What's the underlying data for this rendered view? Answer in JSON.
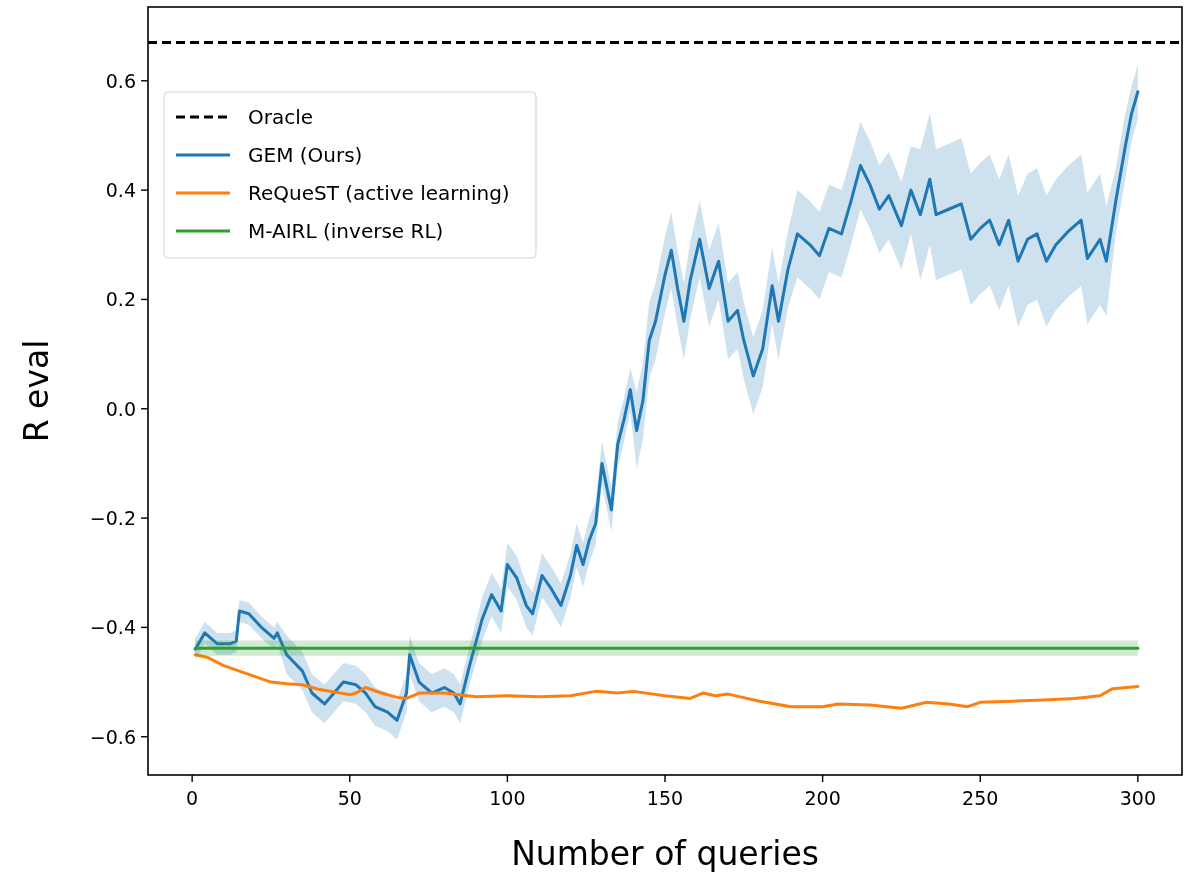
{
  "chart_data": {
    "type": "line",
    "xlabel": "Number of queries",
    "ylabel": "R eval",
    "xlim": [
      -14,
      314
    ],
    "ylim": [
      -0.67,
      0.735
    ],
    "xticks": [
      0,
      50,
      100,
      150,
      200,
      250,
      300
    ],
    "yticks": [
      {
        "value": -0.6,
        "label": "−0.6"
      },
      {
        "value": -0.4,
        "label": "−0.4"
      },
      {
        "value": -0.2,
        "label": "−0.2"
      },
      {
        "value": 0,
        "label": "0.0"
      },
      0.2,
      0.4,
      0.6
    ],
    "grid": false,
    "legend": "top left",
    "marker": "none",
    "line_style": "solid",
    "ref_lines": [
      {
        "axis": "y",
        "value": 0.67,
        "label": "Oracle",
        "color": "#000000",
        "line_style": "dashed"
      }
    ],
    "series": [
      {
        "name": "GEM (Ours)",
        "color": "#1f77b4",
        "x": [
          1,
          4,
          8,
          12,
          14,
          15,
          18,
          22,
          26,
          27,
          30,
          35,
          38,
          42,
          45,
          48,
          52,
          55,
          58,
          62,
          65,
          68,
          69,
          72,
          76,
          80,
          83,
          85,
          88,
          92,
          95,
          98,
          100,
          103,
          106,
          108,
          111,
          114,
          117,
          120,
          122,
          124,
          126,
          128,
          130,
          133,
          135,
          137,
          139,
          141,
          143,
          145,
          147,
          150,
          152,
          154,
          156,
          158,
          161,
          164,
          167,
          170,
          173,
          175,
          178,
          181,
          184,
          186,
          189,
          192,
          196,
          199,
          202,
          206,
          209,
          212,
          215,
          218,
          221,
          225,
          228,
          231,
          234,
          236,
          240,
          244,
          247,
          250,
          253,
          256,
          259,
          262,
          265,
          268,
          271,
          274,
          278,
          282,
          284,
          288,
          290,
          293,
          296,
          298,
          300
        ],
        "values": [
          -0.44,
          -0.41,
          -0.43,
          -0.43,
          -0.425,
          -0.37,
          -0.375,
          -0.4,
          -0.42,
          -0.41,
          -0.45,
          -0.48,
          -0.52,
          -0.54,
          -0.52,
          -0.5,
          -0.505,
          -0.52,
          -0.545,
          -0.555,
          -0.57,
          -0.52,
          -0.45,
          -0.5,
          -0.52,
          -0.51,
          -0.52,
          -0.54,
          -0.47,
          -0.385,
          -0.34,
          -0.37,
          -0.285,
          -0.31,
          -0.36,
          -0.375,
          -0.305,
          -0.33,
          -0.36,
          -0.305,
          -0.25,
          -0.285,
          -0.24,
          -0.21,
          -0.1,
          -0.185,
          -0.065,
          -0.02,
          0.035,
          -0.04,
          0.015,
          0.125,
          0.16,
          0.245,
          0.29,
          0.22,
          0.16,
          0.235,
          0.31,
          0.22,
          0.27,
          0.16,
          0.18,
          0.125,
          0.06,
          0.11,
          0.225,
          0.16,
          0.255,
          0.32,
          0.3,
          0.28,
          0.33,
          0.32,
          0.38,
          0.445,
          0.41,
          0.365,
          0.39,
          0.335,
          0.4,
          0.355,
          0.42,
          0.355,
          0.365,
          0.375,
          0.31,
          0.33,
          0.345,
          0.3,
          0.345,
          0.27,
          0.31,
          0.32,
          0.27,
          0.3,
          0.325,
          0.345,
          0.275,
          0.31,
          0.27,
          0.38,
          0.48,
          0.54,
          0.58
        ],
        "lower": [
          -0.46,
          -0.43,
          -0.45,
          -0.45,
          -0.445,
          -0.39,
          -0.395,
          -0.42,
          -0.44,
          -0.43,
          -0.485,
          -0.515,
          -0.555,
          -0.575,
          -0.555,
          -0.535,
          -0.54,
          -0.555,
          -0.58,
          -0.59,
          -0.605,
          -0.555,
          -0.485,
          -0.535,
          -0.555,
          -0.545,
          -0.555,
          -0.575,
          -0.505,
          -0.425,
          -0.38,
          -0.41,
          -0.325,
          -0.35,
          -0.4,
          -0.415,
          -0.345,
          -0.37,
          -0.4,
          -0.345,
          -0.29,
          -0.325,
          -0.28,
          -0.25,
          -0.14,
          -0.225,
          -0.105,
          -0.06,
          -0.005,
          -0.11,
          -0.055,
          0.055,
          0.09,
          0.175,
          0.22,
          0.15,
          0.09,
          0.165,
          0.24,
          0.15,
          0.2,
          0.09,
          0.11,
          0.055,
          -0.01,
          0.04,
          0.155,
          0.09,
          0.185,
          0.24,
          0.22,
          0.2,
          0.25,
          0.24,
          0.3,
          0.365,
          0.33,
          0.285,
          0.31,
          0.255,
          0.32,
          0.235,
          0.3,
          0.235,
          0.245,
          0.255,
          0.19,
          0.21,
          0.225,
          0.18,
          0.225,
          0.15,
          0.19,
          0.2,
          0.15,
          0.18,
          0.205,
          0.225,
          0.155,
          0.19,
          0.17,
          0.32,
          0.42,
          0.49,
          0.53
        ],
        "upper": [
          -0.42,
          -0.39,
          -0.41,
          -0.41,
          -0.405,
          -0.35,
          -0.355,
          -0.38,
          -0.4,
          -0.39,
          -0.415,
          -0.445,
          -0.485,
          -0.505,
          -0.485,
          -0.465,
          -0.47,
          -0.485,
          -0.51,
          -0.52,
          -0.535,
          -0.485,
          -0.415,
          -0.465,
          -0.485,
          -0.475,
          -0.485,
          -0.505,
          -0.435,
          -0.345,
          -0.3,
          -0.33,
          -0.245,
          -0.27,
          -0.32,
          -0.335,
          -0.265,
          -0.29,
          -0.32,
          -0.265,
          -0.21,
          -0.245,
          -0.2,
          -0.17,
          -0.06,
          -0.145,
          -0.025,
          0.02,
          0.075,
          0.03,
          0.085,
          0.195,
          0.23,
          0.315,
          0.36,
          0.29,
          0.23,
          0.305,
          0.38,
          0.29,
          0.34,
          0.23,
          0.25,
          0.195,
          0.13,
          0.18,
          0.295,
          0.23,
          0.325,
          0.4,
          0.38,
          0.36,
          0.41,
          0.4,
          0.46,
          0.525,
          0.49,
          0.445,
          0.47,
          0.415,
          0.48,
          0.475,
          0.54,
          0.475,
          0.485,
          0.495,
          0.43,
          0.45,
          0.465,
          0.42,
          0.465,
          0.39,
          0.43,
          0.44,
          0.39,
          0.42,
          0.445,
          0.465,
          0.395,
          0.43,
          0.37,
          0.44,
          0.54,
          0.59,
          0.63
        ]
      },
      {
        "name": "ReQueST (active learning)",
        "color": "#ff7f0e",
        "x": [
          1,
          5,
          10,
          15,
          20,
          25,
          30,
          35,
          40,
          45,
          50,
          52,
          55,
          60,
          65,
          68,
          72,
          80,
          90,
          100,
          110,
          120,
          128,
          135,
          140,
          150,
          158,
          162,
          166,
          170,
          180,
          190,
          200,
          205,
          215,
          225,
          233,
          240,
          246,
          250,
          260,
          270,
          280,
          288,
          292,
          300
        ],
        "values": [
          -0.45,
          -0.455,
          -0.47,
          -0.48,
          -0.49,
          -0.5,
          -0.503,
          -0.505,
          -0.513,
          -0.518,
          -0.523,
          -0.52,
          -0.51,
          -0.52,
          -0.528,
          -0.53,
          -0.52,
          -0.52,
          -0.527,
          -0.525,
          -0.527,
          -0.525,
          -0.517,
          -0.52,
          -0.517,
          -0.525,
          -0.53,
          -0.52,
          -0.525,
          -0.522,
          -0.535,
          -0.545,
          -0.545,
          -0.54,
          -0.542,
          -0.548,
          -0.537,
          -0.54,
          -0.545,
          -0.537,
          -0.535,
          -0.533,
          -0.53,
          -0.525,
          -0.512,
          -0.508
        ]
      },
      {
        "name": "M-AIRL (inverse RL)",
        "color": "#2ca02c",
        "x": [
          1,
          300
        ],
        "values": [
          -0.438,
          -0.438
        ],
        "lower": [
          -0.452,
          -0.452
        ],
        "upper": [
          -0.424,
          -0.424
        ]
      }
    ]
  }
}
